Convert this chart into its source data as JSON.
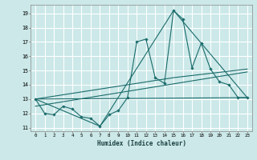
{
  "xlabel": "Humidex (Indice chaleur)",
  "bg_color": "#cce8e8",
  "grid_color": "#ffffff",
  "line_color": "#1a6b6b",
  "xlim": [
    -0.5,
    23.5
  ],
  "ylim": [
    10.75,
    19.6
  ],
  "xticks": [
    0,
    1,
    2,
    3,
    4,
    5,
    6,
    7,
    8,
    9,
    10,
    11,
    12,
    13,
    14,
    15,
    16,
    17,
    18,
    19,
    20,
    21,
    22,
    23
  ],
  "yticks": [
    11,
    12,
    13,
    14,
    15,
    16,
    17,
    18,
    19
  ],
  "series1_x": [
    0,
    1,
    2,
    3,
    4,
    5,
    6,
    7,
    8,
    9,
    10,
    11,
    12,
    13,
    14,
    15,
    16,
    17,
    18,
    19,
    20,
    21,
    22,
    23
  ],
  "series1_y": [
    13.0,
    12.0,
    11.9,
    12.5,
    12.3,
    11.75,
    11.65,
    11.1,
    11.9,
    12.2,
    13.1,
    17.0,
    17.2,
    14.5,
    14.1,
    19.2,
    18.6,
    15.2,
    16.9,
    15.1,
    14.2,
    14.0,
    13.1,
    13.1
  ],
  "series2_x": [
    0,
    23
  ],
  "series2_y": [
    13.0,
    13.1
  ],
  "series3_x": [
    0,
    23
  ],
  "series3_y": [
    12.5,
    14.9
  ],
  "series4_x": [
    0,
    15,
    23
  ],
  "series4_y": [
    13.0,
    14.5,
    15.1
  ],
  "series5_x": [
    0,
    7,
    15,
    23
  ],
  "series5_y": [
    13.0,
    11.1,
    19.2,
    13.1
  ]
}
